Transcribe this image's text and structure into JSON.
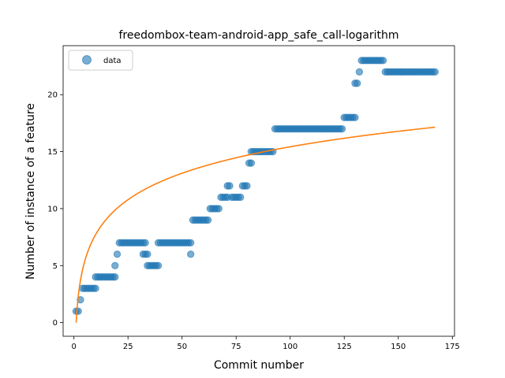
{
  "chart_data": {
    "type": "scatter",
    "title": "freedombox-team-android-app_safe_call-logarithm",
    "xlabel": "Commit number",
    "ylabel": "Number of instance of a feature",
    "xlim": [
      -5,
      176
    ],
    "ylim": [
      -1.2,
      24.3
    ],
    "xticks": [
      0,
      25,
      50,
      75,
      100,
      125,
      150,
      175
    ],
    "yticks": [
      0,
      5,
      10,
      15,
      20
    ],
    "legend": {
      "position": "top-left",
      "entries": [
        "data"
      ]
    },
    "grid": false,
    "series": [
      {
        "name": "data",
        "kind": "scatter",
        "color": "#1f77b4",
        "runs": [
          [
            1,
            2,
            1
          ],
          [
            3,
            3,
            2
          ],
          [
            4,
            10,
            3
          ],
          [
            10,
            19,
            4
          ],
          [
            19,
            19,
            5
          ],
          [
            20,
            20,
            6
          ],
          [
            21,
            33,
            7
          ],
          [
            32,
            34,
            6
          ],
          [
            34,
            39,
            5
          ],
          [
            39,
            54,
            7
          ],
          [
            54,
            54,
            6
          ],
          [
            55,
            62,
            9
          ],
          [
            63,
            67,
            10
          ],
          [
            68,
            71,
            11
          ],
          [
            71,
            72,
            12
          ],
          [
            73,
            77,
            11
          ],
          [
            78,
            80,
            12
          ],
          [
            81,
            82,
            14
          ],
          [
            82,
            92,
            15
          ],
          [
            93,
            124,
            17
          ],
          [
            125,
            130,
            18
          ],
          [
            130,
            131,
            21
          ],
          [
            132,
            132,
            22
          ],
          [
            133,
            143,
            23
          ],
          [
            144,
            167,
            22
          ]
        ]
      },
      {
        "name": "",
        "kind": "line",
        "color": "#ff7f0e",
        "model": "logarithmic",
        "a": 0,
        "b": 3.35,
        "x_range": [
          1,
          167
        ]
      }
    ]
  }
}
